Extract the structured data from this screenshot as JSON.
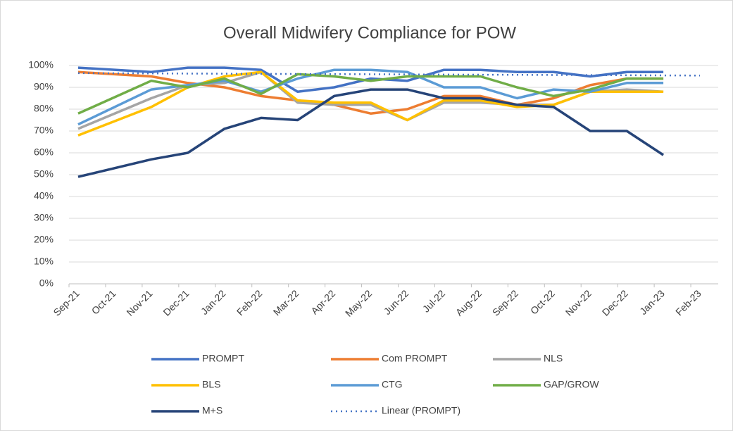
{
  "chart_data": {
    "type": "line",
    "title": "Overall Midwifery Compliance for POW",
    "xticks": [
      "Sep-21",
      "Oct-21",
      "Nov-21",
      "Dec-21",
      "Jan-22",
      "Feb-22",
      "Mar-22",
      "Apr-22",
      "May-22",
      "Jun-22",
      "Jul-22",
      "Aug-22",
      "Sep-22",
      "Oct-22",
      "Nov-22",
      "Dec-22",
      "Jan-23",
      "Feb-23"
    ],
    "x": [
      "Sep-21",
      "Nov-21",
      "Dec-21",
      "Jan-22",
      "Feb-22",
      "Mar-22",
      "Apr-22",
      "May-22",
      "Jun-22",
      "Jul-22",
      "Aug-22",
      "Sep-22",
      "Oct-22",
      "Nov-22",
      "Dec-22",
      "Jan-23"
    ],
    "series": [
      {
        "name": "PROMPT",
        "color": "#4472c4",
        "values": [
          99,
          97,
          99,
          99,
          98,
          88,
          90,
          94,
          93,
          98,
          98,
          97,
          97,
          95,
          97,
          97
        ]
      },
      {
        "name": "Com PROMPT",
        "color": "#ed7d31",
        "values": [
          97,
          95,
          92,
          90,
          86,
          84,
          82,
          78,
          80,
          86,
          86,
          82,
          85,
          91,
          94,
          94
        ]
      },
      {
        "name": "NLS",
        "color": "#a5a5a5",
        "values": [
          71,
          85,
          91,
          92,
          97,
          83,
          82,
          82,
          75,
          83,
          83,
          82,
          82,
          88,
          89,
          88
        ]
      },
      {
        "name": "BLS",
        "color": "#ffc000",
        "values": [
          68,
          81,
          90,
          95,
          97,
          84,
          83,
          83,
          75,
          84,
          84,
          81,
          82,
          88,
          88,
          88
        ]
      },
      {
        "name": "CTG",
        "color": "#5b9bd5",
        "values": [
          73,
          89,
          91,
          93,
          88,
          94,
          98,
          98,
          97,
          90,
          90,
          85,
          89,
          88,
          92,
          92
        ]
      },
      {
        "name": "GAP/GROW",
        "color": "#70ad47",
        "values": [
          78,
          93,
          90,
          94,
          87,
          96,
          95,
          93,
          95,
          95,
          95,
          90,
          86,
          89,
          94,
          94
        ]
      },
      {
        "name": "M+S",
        "color": "#264478",
        "values": [
          49,
          57,
          60,
          71,
          76,
          75,
          86,
          89,
          89,
          85,
          85,
          82,
          81,
          70,
          70,
          59
        ]
      }
    ],
    "trendline": {
      "name": "Linear (PROMPT)",
      "color": "#4472c4",
      "style": "dotted",
      "x": [
        "Sep-21",
        "Feb-23"
      ],
      "values": [
        96.5,
        95.4
      ]
    },
    "ylim": [
      0,
      100
    ],
    "yticks": [
      {
        "value": 0,
        "label": "0%"
      },
      {
        "value": 10,
        "label": "10%"
      },
      {
        "value": 20,
        "label": "20%"
      },
      {
        "value": 30,
        "label": "30%"
      },
      {
        "value": 40,
        "label": "40%"
      },
      {
        "value": 50,
        "label": "50%"
      },
      {
        "value": 60,
        "label": "60%"
      },
      {
        "value": 70,
        "label": "70%"
      },
      {
        "value": 80,
        "label": "80%"
      },
      {
        "value": 90,
        "label": "90%"
      },
      {
        "value": 100,
        "label": "100%"
      }
    ],
    "grid": true,
    "legend": "bottom"
  }
}
